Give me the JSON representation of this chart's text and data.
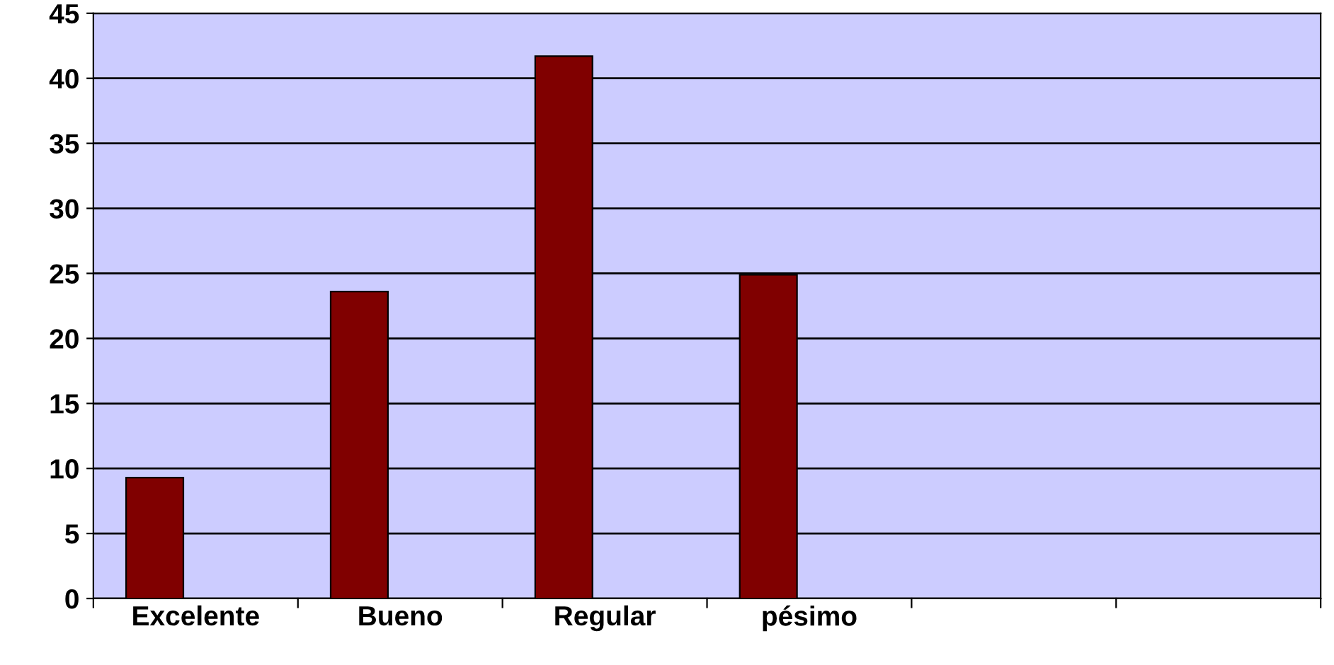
{
  "chart_data": {
    "type": "bar",
    "categories": [
      "Excelente",
      "Bueno",
      "Regular",
      "pésimo",
      null,
      null
    ],
    "values": [
      9.3,
      23.6,
      41.7,
      24.9,
      null,
      null
    ],
    "color": "#800000",
    "ylim": [
      0,
      45
    ],
    "yticks": [
      0,
      5,
      10,
      15,
      20,
      25,
      30,
      35,
      40,
      45
    ],
    "grid": "y"
  }
}
